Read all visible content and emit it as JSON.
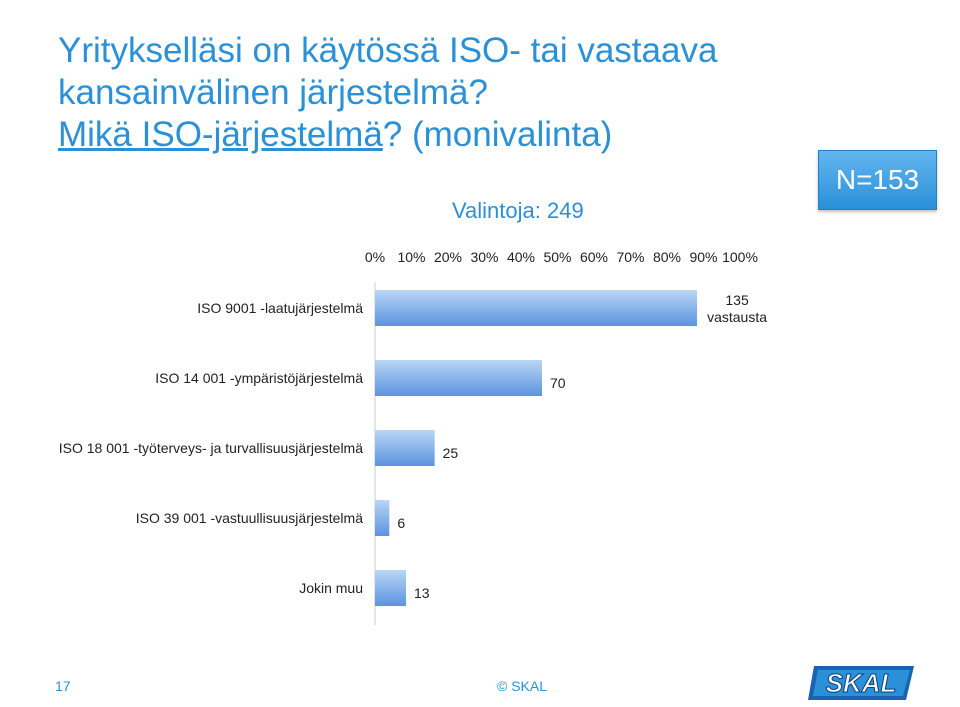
{
  "slide": {
    "title_line1": "Yritykselläsi on käytössä ISO- tai vastaava",
    "title_line2": "kansainvälinen järjestelmä?",
    "subtitle_link": "Mikä ISO-järjestelmä",
    "subtitle_rest": "? (monivalinta)",
    "n_label": "N=153",
    "choices_label": "Valintoja: 249",
    "page_number": "17",
    "copyright": "© SKAL",
    "logo_text": "SKAL"
  },
  "colors": {
    "accent": "#2a90d8",
    "bar_top": "#b9d6f4",
    "bar_bottom": "#5b93e0",
    "text": "#222222",
    "axis": "#cccccc"
  },
  "chart_data": {
    "type": "bar",
    "orientation": "horizontal",
    "title": "Valintoja: 249",
    "categories": [
      "ISO 9001 -laatujärjestelmä",
      "ISO 14 001 -ympäristöjärjestelmä",
      "ISO 18 001 -työterveys- ja turvallisuusjärjestelmä",
      "ISO 39 001 -vastuullisuusjärjestelmä",
      "Jokin muu"
    ],
    "values": [
      135,
      70,
      25,
      6,
      13
    ],
    "data_labels": [
      "135 vastausta",
      "70",
      "25",
      "6",
      "13"
    ],
    "xlim": [
      0,
      153
    ],
    "x_ticks": [
      "0%",
      "10%",
      "20%",
      "30%",
      "40%",
      "50%",
      "60%",
      "70%",
      "80%",
      "90%",
      "100%"
    ],
    "tick_position": "top",
    "grid": false,
    "legend": "none"
  }
}
